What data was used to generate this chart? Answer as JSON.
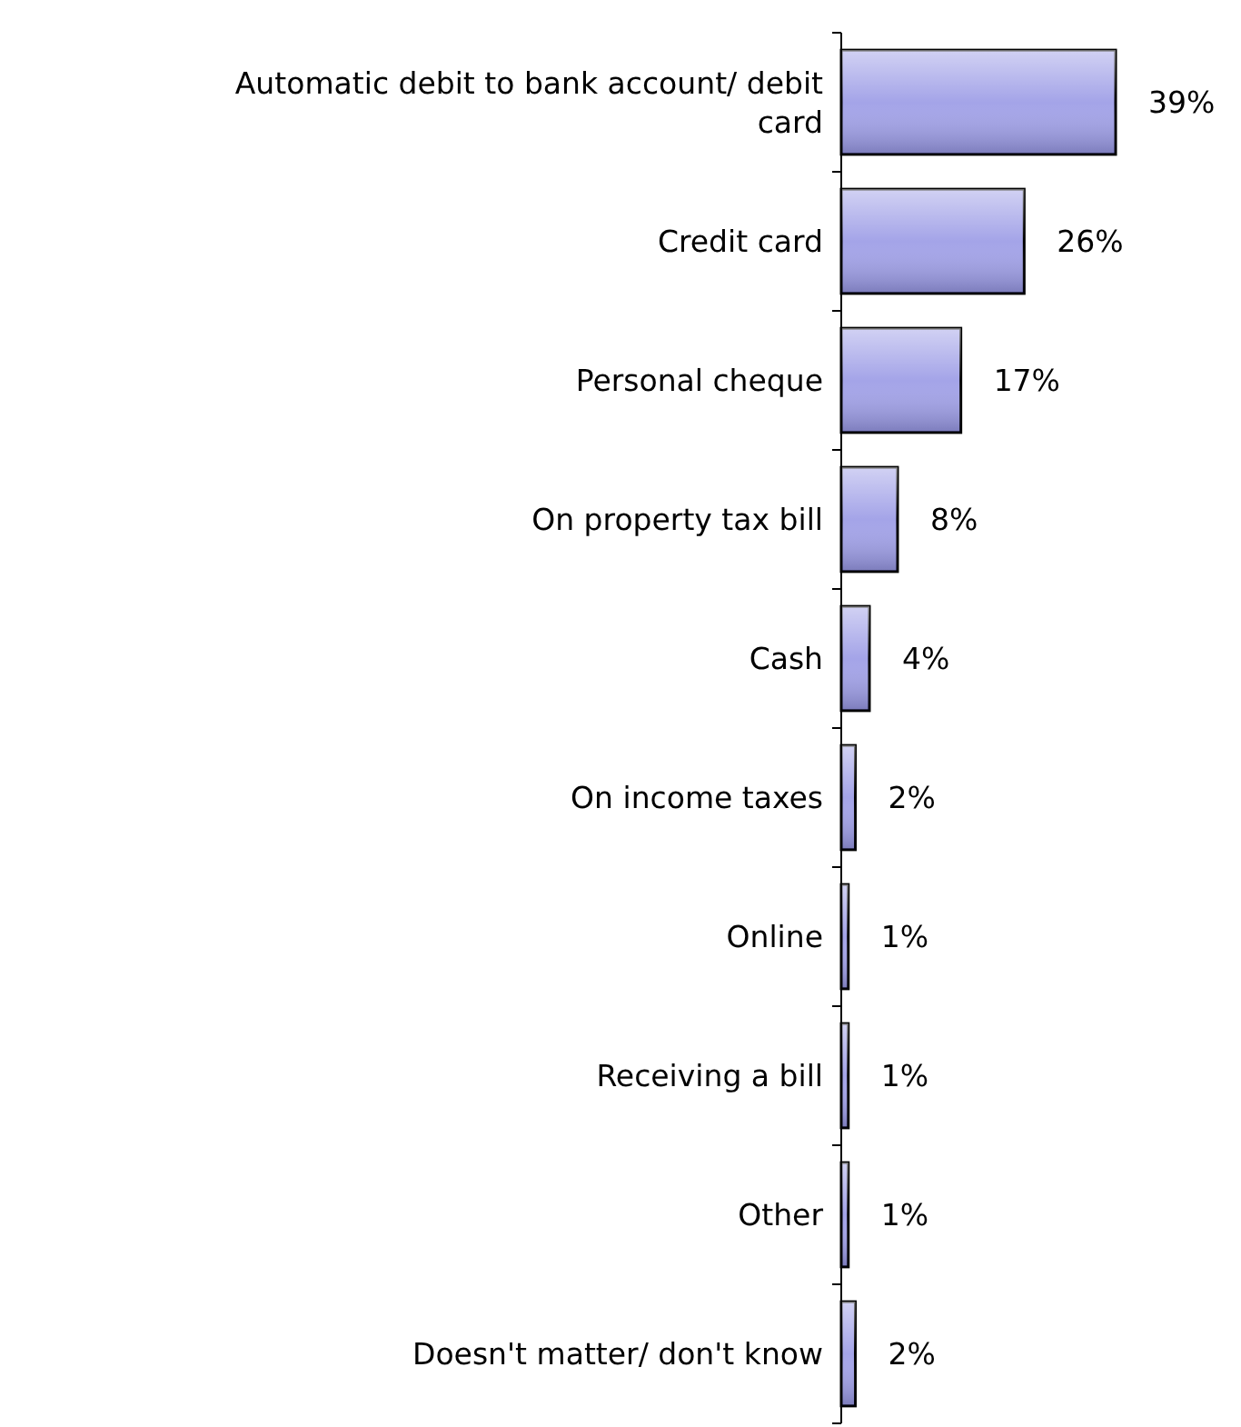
{
  "chart_data": {
    "type": "bar",
    "orientation": "horizontal",
    "categories": [
      "Automatic debit to bank account/ debit card",
      "Credit card",
      "Personal cheque",
      "On property tax bill",
      "Cash",
      "On income taxes",
      "Online",
      "Receiving a bill",
      "Other",
      "Doesn't matter/ don't know"
    ],
    "values": [
      39,
      26,
      17,
      8,
      4,
      2,
      1,
      1,
      1,
      2
    ],
    "value_labels": [
      "39%",
      "26%",
      "17%",
      "8%",
      "4%",
      "2%",
      "1%",
      "1%",
      "1%",
      "2%"
    ],
    "color": "#a4a4e8"
  }
}
